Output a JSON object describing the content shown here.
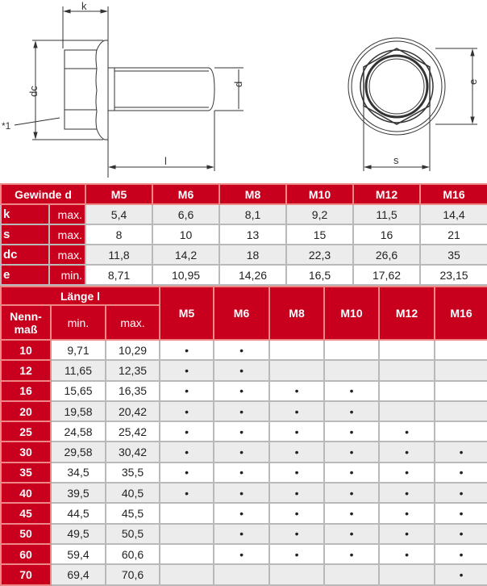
{
  "drawing": {
    "labels": {
      "k": "k",
      "dc": "dc",
      "d": "d",
      "l": "l",
      "note": "*1",
      "e": "e",
      "s": "s"
    }
  },
  "dimensions_table": {
    "header": "Gewinde d",
    "sizes": [
      "M5",
      "M6",
      "M8",
      "M10",
      "M12",
      "M16"
    ],
    "rows": [
      {
        "label": "k",
        "limit": "max.",
        "values": [
          "5,4",
          "6,6",
          "8,1",
          "9,2",
          "11,5",
          "14,4"
        ]
      },
      {
        "label": "s",
        "limit": "max.",
        "values": [
          "8",
          "10",
          "13",
          "15",
          "16",
          "21"
        ]
      },
      {
        "label": "dc",
        "limit": "max.",
        "values": [
          "11,8",
          "14,2",
          "18",
          "22,3",
          "26,6",
          "35"
        ]
      },
      {
        "label": "e",
        "limit": "min.",
        "values": [
          "8,71",
          "10,95",
          "14,26",
          "16,5",
          "17,62",
          "23,15"
        ]
      }
    ]
  },
  "length_table": {
    "group_header": "Länge l",
    "nominal_header": "Nenn-maß",
    "min_header": "min.",
    "max_header": "max.",
    "sizes": [
      "M5",
      "M6",
      "M8",
      "M10",
      "M12",
      "M16"
    ],
    "marker": "•",
    "rows": [
      {
        "nominal": "10",
        "min": "9,71",
        "max": "10,29",
        "available": [
          1,
          1,
          0,
          0,
          0,
          0
        ]
      },
      {
        "nominal": "12",
        "min": "11,65",
        "max": "12,35",
        "available": [
          1,
          1,
          0,
          0,
          0,
          0
        ]
      },
      {
        "nominal": "16",
        "min": "15,65",
        "max": "16,35",
        "available": [
          1,
          1,
          1,
          1,
          0,
          0
        ]
      },
      {
        "nominal": "20",
        "min": "19,58",
        "max": "20,42",
        "available": [
          1,
          1,
          1,
          1,
          0,
          0
        ]
      },
      {
        "nominal": "25",
        "min": "24,58",
        "max": "25,42",
        "available": [
          1,
          1,
          1,
          1,
          1,
          0
        ]
      },
      {
        "nominal": "30",
        "min": "29,58",
        "max": "30,42",
        "available": [
          1,
          1,
          1,
          1,
          1,
          1
        ]
      },
      {
        "nominal": "35",
        "min": "34,5",
        "max": "35,5",
        "available": [
          1,
          1,
          1,
          1,
          1,
          1
        ]
      },
      {
        "nominal": "40",
        "min": "39,5",
        "max": "40,5",
        "available": [
          1,
          1,
          1,
          1,
          1,
          1
        ]
      },
      {
        "nominal": "45",
        "min": "44,5",
        "max": "45,5",
        "available": [
          0,
          1,
          1,
          1,
          1,
          1
        ]
      },
      {
        "nominal": "50",
        "min": "49,5",
        "max": "50,5",
        "available": [
          0,
          1,
          1,
          1,
          1,
          1
        ]
      },
      {
        "nominal": "60",
        "min": "59,4",
        "max": "60,6",
        "available": [
          0,
          1,
          1,
          1,
          1,
          1
        ]
      },
      {
        "nominal": "70",
        "min": "69,4",
        "max": "70,6",
        "available": [
          0,
          0,
          0,
          0,
          0,
          1
        ]
      }
    ]
  },
  "colors": {
    "header_red": "#c8001e",
    "row_gray": "#ececec"
  }
}
